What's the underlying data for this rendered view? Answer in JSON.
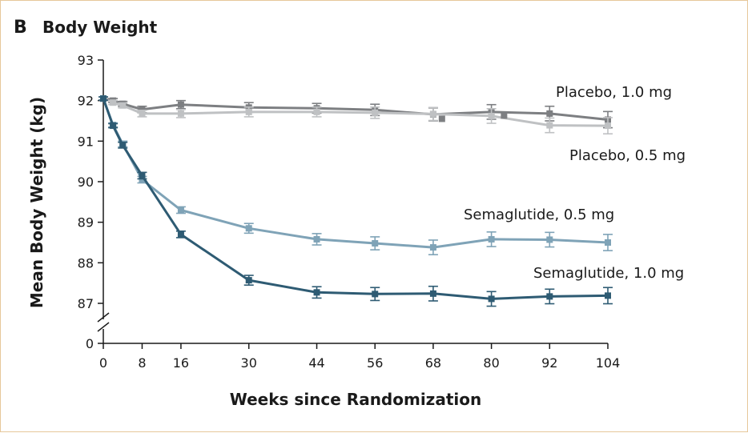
{
  "chart_data": {
    "type": "line",
    "panel_letter": "B",
    "title": "Body Weight",
    "xlabel": "Weeks since Randomization",
    "ylabel": "Mean Body Weight (kg)",
    "x_ticks": [
      0,
      8,
      16,
      30,
      44,
      56,
      68,
      80,
      92,
      104
    ],
    "y_ticks": [
      87,
      88,
      89,
      90,
      91,
      92,
      93
    ],
    "y_break_tick": 0,
    "ylim": [
      87,
      93
    ],
    "xlim": [
      0,
      104
    ],
    "grid": false,
    "series": [
      {
        "name": "Placebo, 1.0 mg",
        "color": "#7d7f82",
        "x": [
          0,
          2,
          4,
          8,
          16,
          30,
          44,
          56,
          68,
          80,
          92,
          104
        ],
        "y": [
          92.05,
          92.0,
          91.92,
          91.78,
          91.9,
          91.83,
          91.81,
          91.77,
          91.66,
          91.72,
          91.68,
          91.53
        ],
        "err": [
          0.04,
          0.05,
          0.06,
          0.08,
          0.1,
          0.12,
          0.12,
          0.14,
          0.16,
          0.18,
          0.18,
          0.2
        ]
      },
      {
        "name": "Placebo, 0.5 mg",
        "color": "#bfc1c3",
        "x": [
          0,
          2,
          4,
          8,
          16,
          30,
          44,
          56,
          68,
          80,
          92,
          104
        ],
        "y": [
          92.05,
          91.95,
          91.88,
          91.68,
          91.68,
          91.72,
          91.72,
          91.7,
          91.67,
          91.62,
          91.39,
          91.38
        ],
        "err": [
          0.04,
          0.05,
          0.06,
          0.08,
          0.1,
          0.12,
          0.12,
          0.14,
          0.16,
          0.18,
          0.18,
          0.2
        ]
      },
      {
        "name": "Semaglutide, 0.5 mg",
        "color": "#7fa3b7",
        "x": [
          0,
          2,
          4,
          8,
          16,
          30,
          44,
          56,
          68,
          80,
          92,
          104
        ],
        "y": [
          92.05,
          91.4,
          90.93,
          90.05,
          89.3,
          88.85,
          88.58,
          88.48,
          88.38,
          88.58,
          88.57,
          88.5
        ],
        "err": [
          0.04,
          0.05,
          0.07,
          0.08,
          0.08,
          0.12,
          0.14,
          0.16,
          0.18,
          0.18,
          0.18,
          0.2
        ]
      },
      {
        "name": "Semaglutide, 1.0 mg",
        "color": "#2e5b73",
        "x": [
          0,
          2,
          4,
          8,
          16,
          30,
          44,
          56,
          68,
          80,
          92,
          104
        ],
        "y": [
          92.05,
          91.38,
          90.9,
          90.15,
          88.7,
          87.57,
          87.27,
          87.23,
          87.24,
          87.11,
          87.17,
          87.19
        ],
        "err": [
          0.04,
          0.05,
          0.07,
          0.08,
          0.08,
          0.12,
          0.14,
          0.16,
          0.18,
          0.18,
          0.18,
          0.2
        ]
      }
    ],
    "extra_markers": [
      {
        "series": "Placebo, 1.0 mg",
        "x": 69.8,
        "y": 91.55
      },
      {
        "series": "Placebo, 1.0 mg",
        "x": 82.6,
        "y": 91.63
      }
    ]
  }
}
